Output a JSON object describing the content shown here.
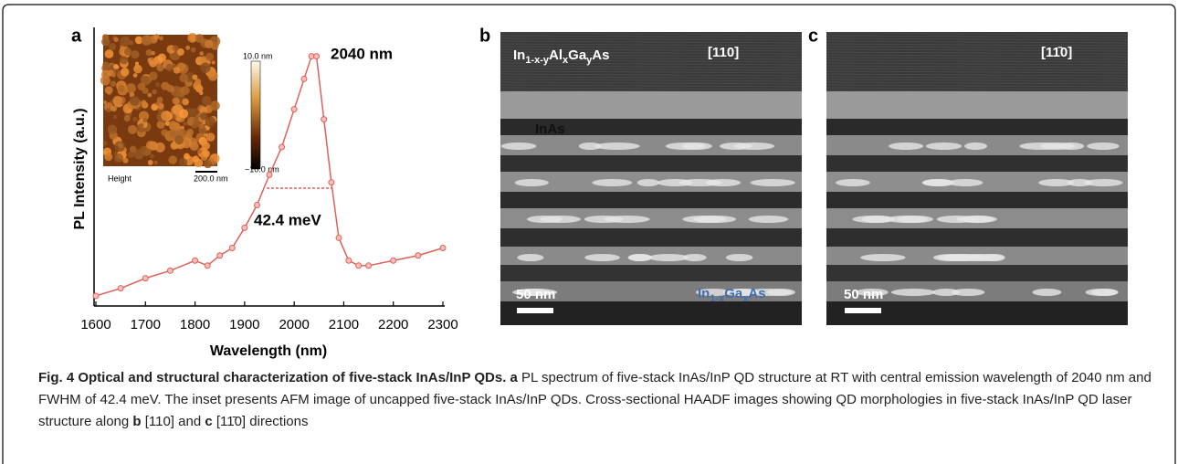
{
  "chart_data": {
    "type": "line",
    "panel_label": "a",
    "x_label": "Wavelength (nm)",
    "y_label": "PL Intensity (a.u.)",
    "x": [
      1600,
      1650,
      1700,
      1750,
      1800,
      1825,
      1850,
      1875,
      1900,
      1925,
      1950,
      1975,
      2000,
      2020,
      2035,
      2045,
      2060,
      2075,
      2090,
      2110,
      2130,
      2150,
      2200,
      2250,
      2300
    ],
    "values": [
      0.04,
      0.07,
      0.11,
      0.14,
      0.18,
      0.16,
      0.2,
      0.23,
      0.31,
      0.4,
      0.52,
      0.63,
      0.78,
      0.9,
      0.99,
      0.99,
      0.74,
      0.49,
      0.27,
      0.18,
      0.16,
      0.16,
      0.18,
      0.2,
      0.23
    ],
    "color": "#e0605a",
    "xlim": [
      1600,
      2300
    ],
    "xticks": [
      1600,
      1700,
      1800,
      1900,
      2000,
      2100,
      2200,
      2300
    ],
    "ylim": [
      0,
      1.05
    ],
    "annotations": [
      "2040 nm",
      "42.4 meV"
    ],
    "inset": {
      "colorbar_max": "10.0 nm",
      "colorbar_min": "−10.0 nm",
      "label": "Height",
      "scale_bar": "200.0 nm"
    }
  },
  "panels": [
    {
      "label": "b",
      "direction": "[110]",
      "top_layer": [
        "In",
        "1-x-y",
        "Al",
        "x",
        "Ga",
        "y",
        "As"
      ],
      "dot_label": "InAs",
      "bottom_layer": [
        "In",
        "1-x",
        "Ga",
        "x",
        "As"
      ],
      "scale_bar": "50 nm"
    },
    {
      "label": "c",
      "direction": "[11̄0]",
      "scale_bar": "50 nm"
    }
  ],
  "caption": {
    "title": "Fig. 4 Optical and structural characterization of five-stack InAs/InP QDs.",
    "parts": [
      "a",
      " PL spectrum of five-stack InAs/InP QD structure at RT with central emission wavelength of 2040 nm and FWHM of 42.4 meV. The inset presents AFM image of uncapped five-stack InAs/InP QDs. Cross-sectional HAADF images showing QD morphologies in five-stack InAs/InP QD laser structure along ",
      "b",
      " [110] and ",
      "c",
      " [11̄0] directions"
    ]
  }
}
